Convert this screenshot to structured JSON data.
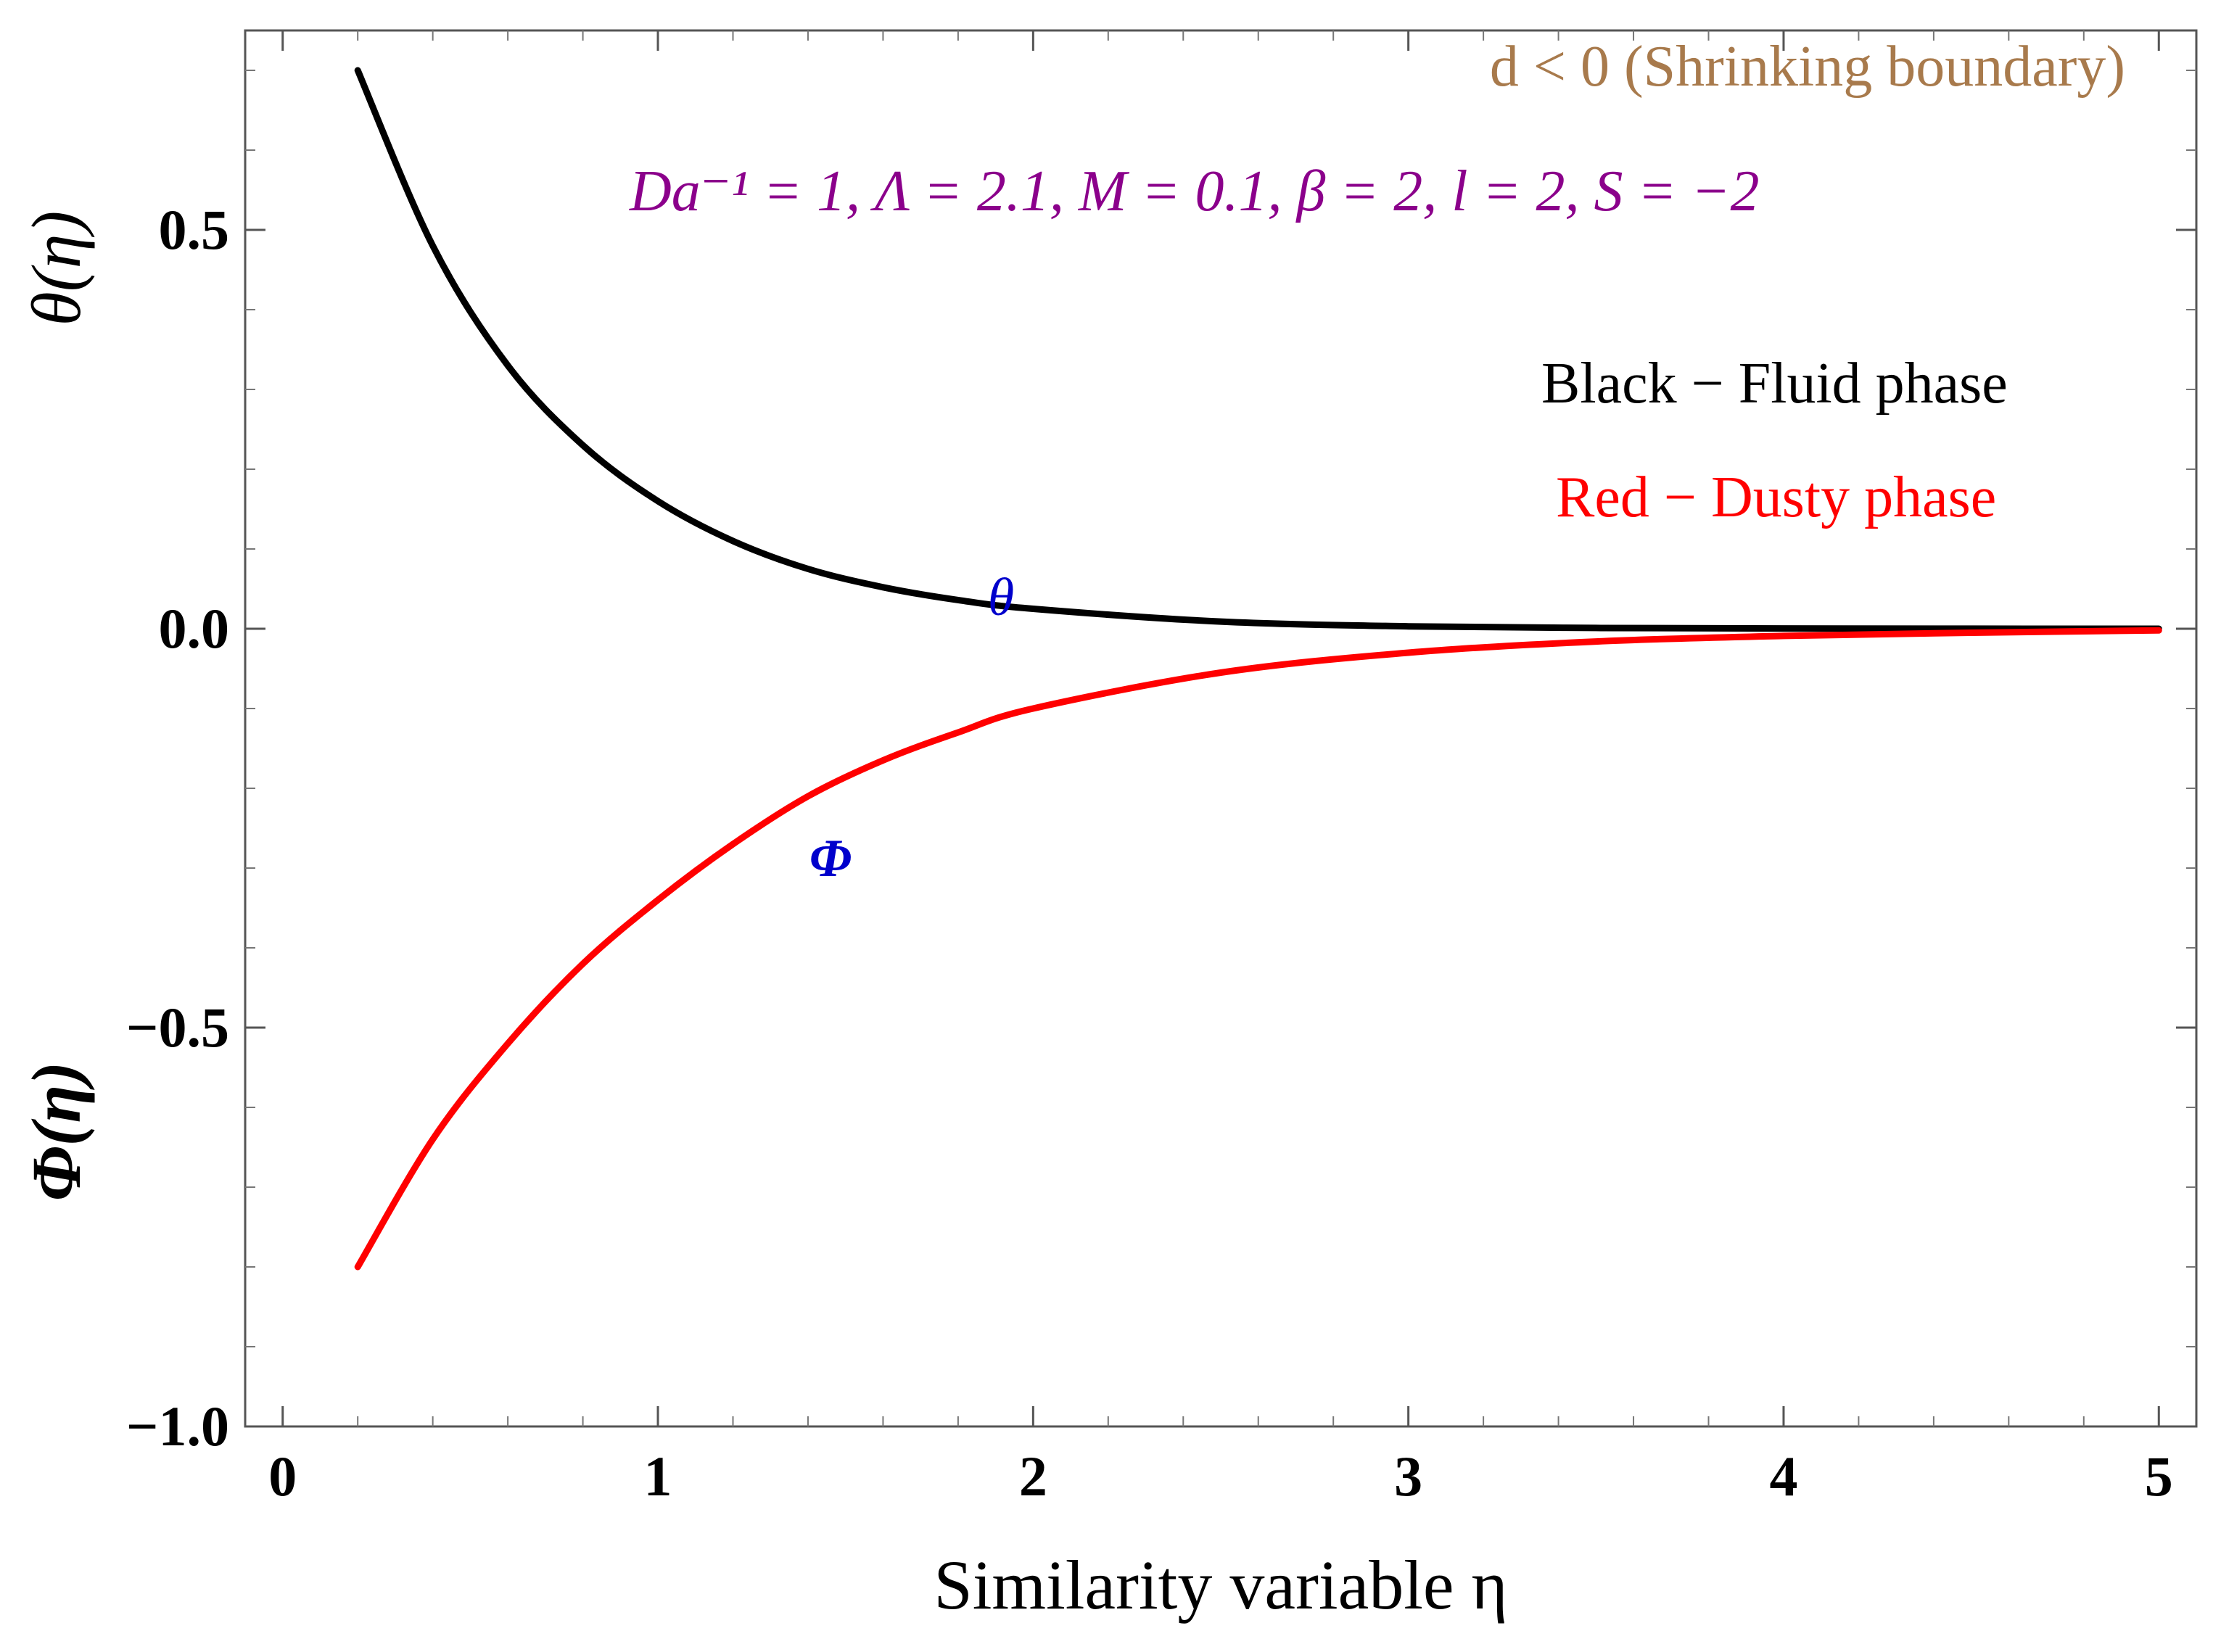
{
  "chart_data": {
    "type": "line",
    "xlabel": "Similarity variable η",
    "ylabel_top": "θ(η)",
    "ylabel_bottom": "Φ(η)",
    "xlim": [
      -0.1,
      5.1
    ],
    "ylim": [
      -1.0,
      0.75
    ],
    "xticks": [
      0,
      1,
      2,
      3,
      4,
      5
    ],
    "xtick_labels": [
      "0",
      "1",
      "2",
      "3",
      "4",
      "5"
    ],
    "yticks": [
      -1.0,
      -0.5,
      0.0,
      0.5
    ],
    "ytick_labels": [
      "−1.0",
      "−0.5",
      "0.0",
      "0.5"
    ],
    "grid": false,
    "series": [
      {
        "name": "θ",
        "color": "#000000",
        "x": [
          0.2,
          0.4,
          0.6,
          0.8,
          1.0,
          1.2,
          1.4,
          1.6,
          1.8,
          2.0,
          2.5,
          3.0,
          3.5,
          4.0,
          4.5,
          5.0
        ],
        "y": [
          0.7,
          0.48,
          0.33,
          0.23,
          0.16,
          0.11,
          0.075,
          0.052,
          0.036,
          0.025,
          0.009,
          0.003,
          0.001,
          0.0004,
          0.0001,
          0.0
        ]
      },
      {
        "name": "Φ",
        "color": "#ff0000",
        "x": [
          0.2,
          0.4,
          0.6,
          0.8,
          1.0,
          1.2,
          1.4,
          1.6,
          1.8,
          2.0,
          2.5,
          3.0,
          3.5,
          4.0,
          4.5,
          5.0
        ],
        "y": [
          -0.8,
          -0.64,
          -0.52,
          -0.42,
          -0.34,
          -0.27,
          -0.21,
          -0.165,
          -0.13,
          -0.1,
          -0.055,
          -0.03,
          -0.016,
          -0.009,
          -0.005,
          -0.002
        ]
      }
    ],
    "annotations": {
      "condition": "d < 0 (Shrinking boundary)",
      "parameters": "Da⁻¹ = 1, Λ = 2.1, M = 0.1, β = 2, l = 2, S = −2",
      "legend_black": "Black − Fluid phase",
      "legend_red": "Red − Dusty phase",
      "curve_label_theta": "θ",
      "curve_label_phi": "Φ"
    },
    "colors": {
      "condition": "#a87a4c",
      "parameters": "#8b008b",
      "legend_black": "#000000",
      "legend_red": "#ff0000",
      "curve_labels": "#0000cc"
    }
  }
}
